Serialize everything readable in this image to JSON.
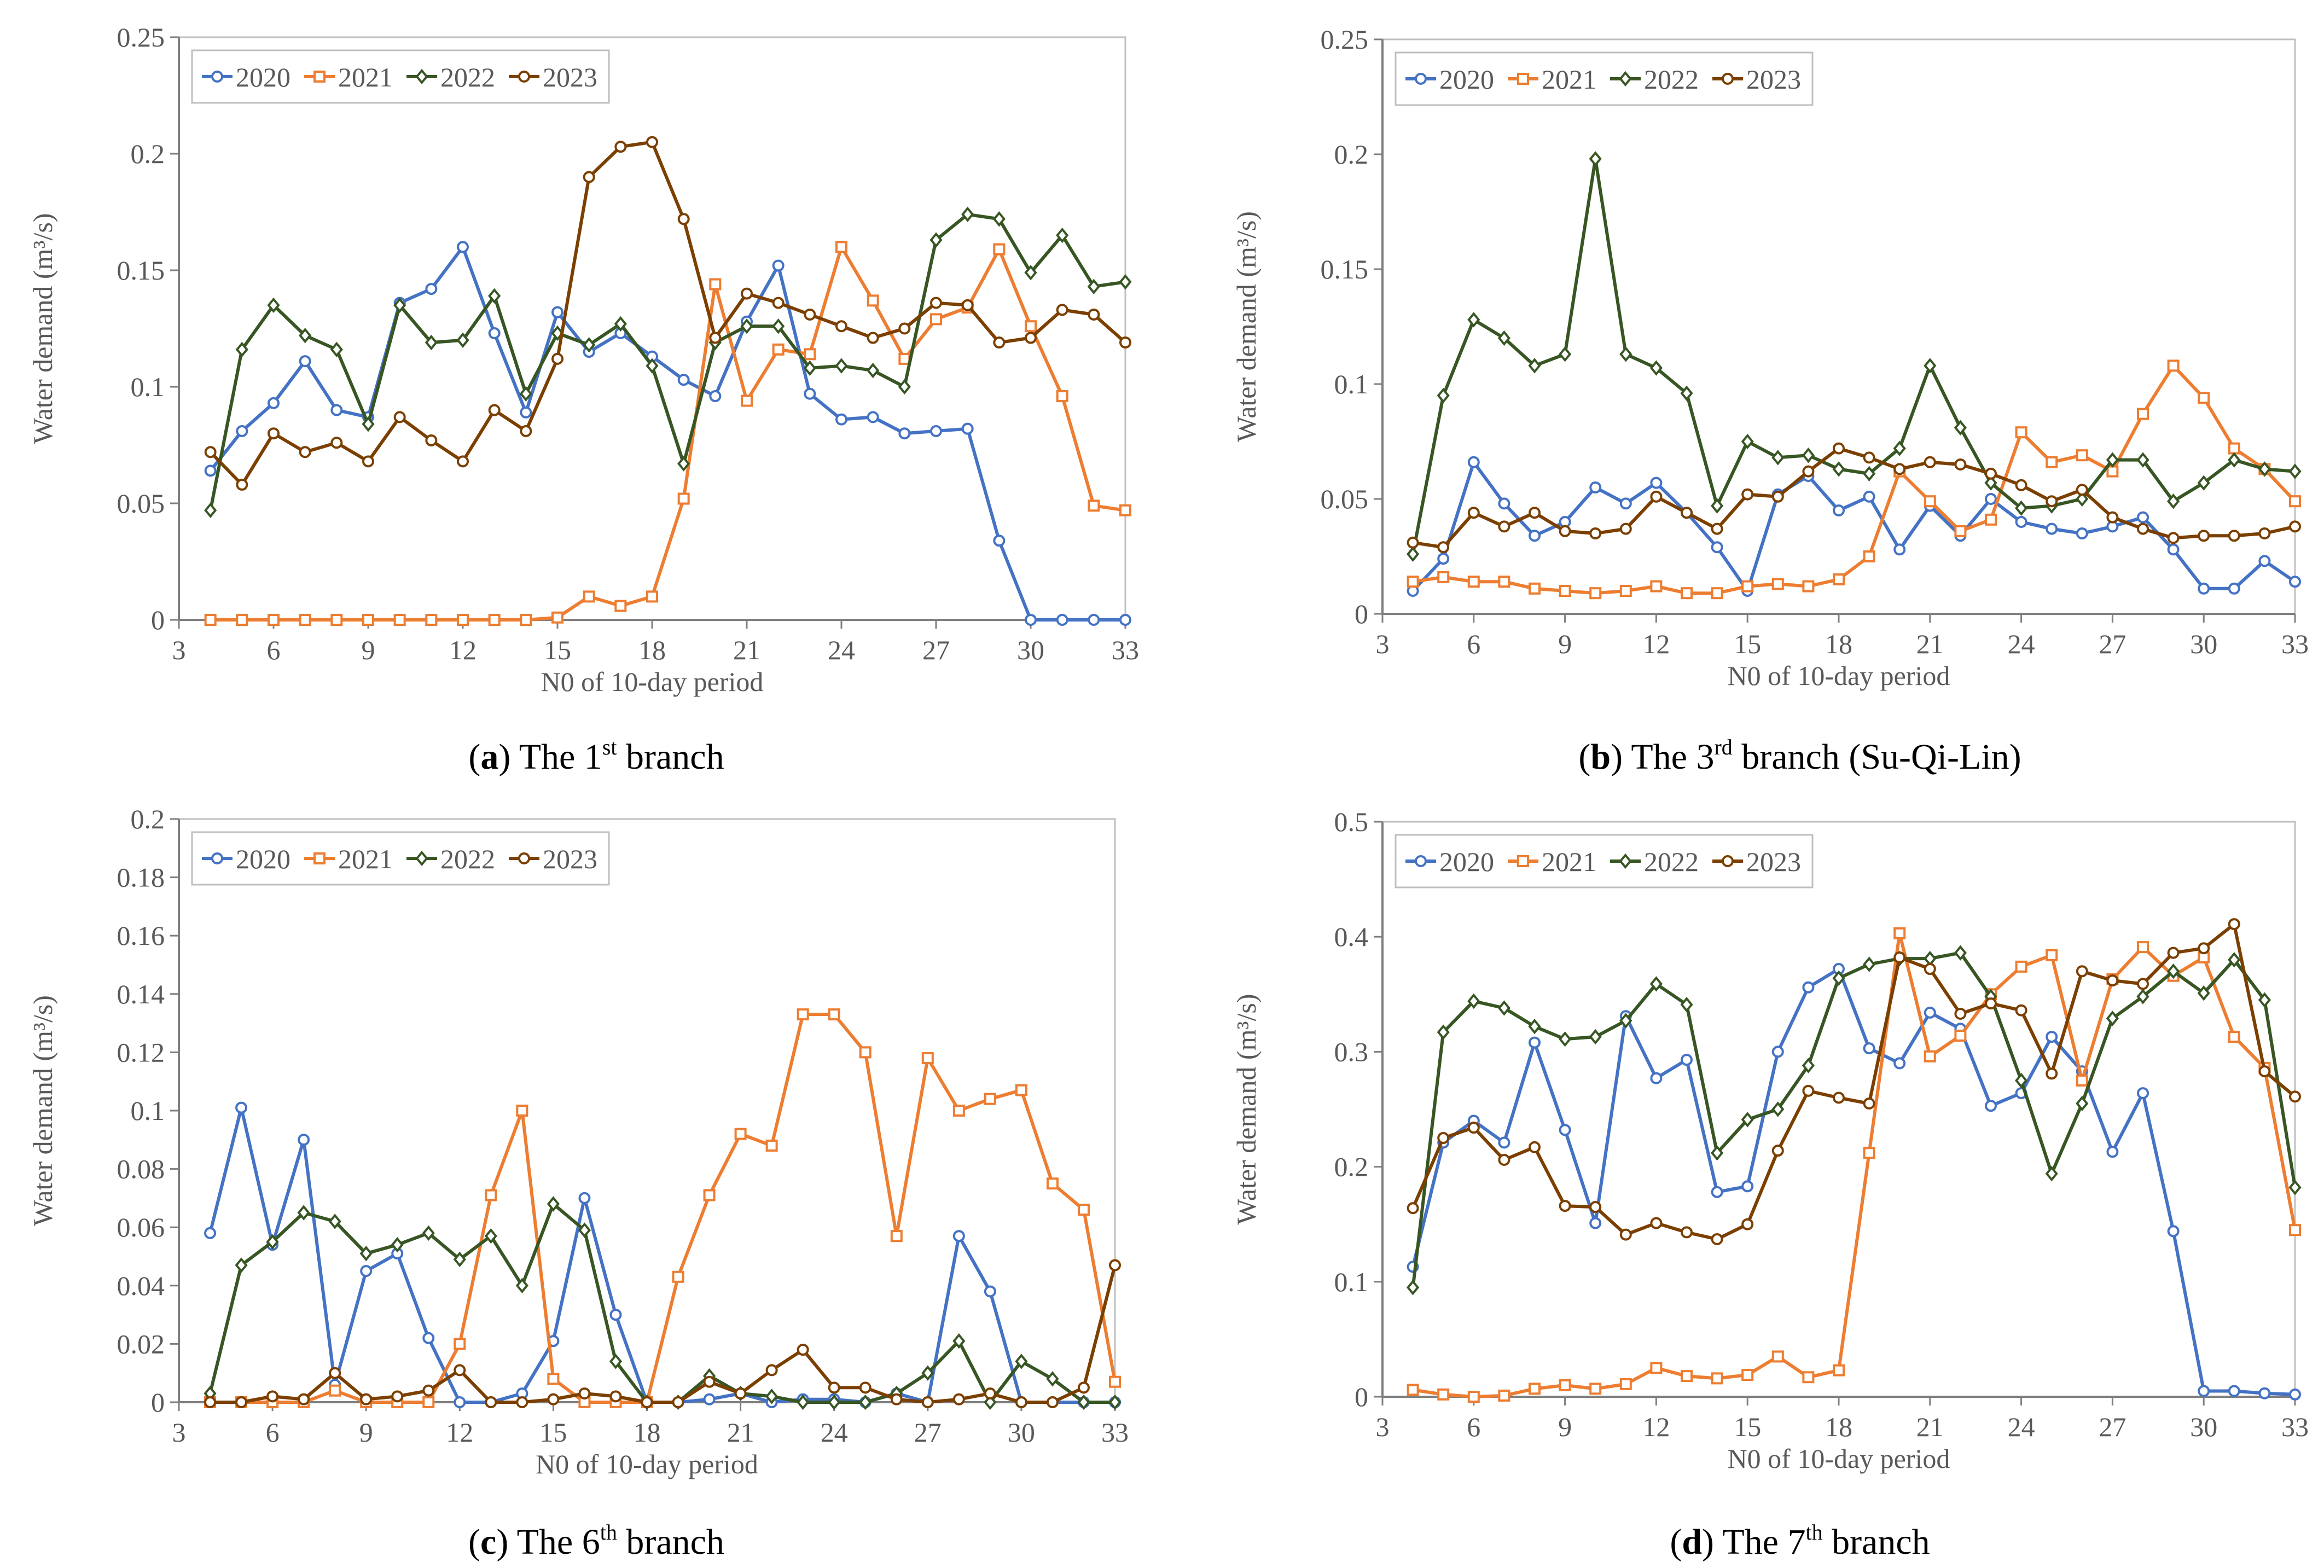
{
  "colors": {
    "s2020": "#4472c4",
    "s2021": "#ed7d31",
    "s2022": "#375623",
    "s2023": "#7b3f00",
    "axis": "#7f7f7f",
    "text": "#595959",
    "caption": "#000000"
  },
  "chart_data": [
    {
      "type": "line",
      "caption": {
        "letter": "a",
        "text": "The 1",
        "sup": "st",
        "suffix": " branch"
      },
      "xlabel": "N0 of 10-day period",
      "ylabel": "Water demand (m³/s)",
      "xlim": [
        3,
        33
      ],
      "ylim": [
        0,
        0.25
      ],
      "xticks": [
        3,
        6,
        9,
        12,
        15,
        18,
        21,
        24,
        27,
        30,
        33
      ],
      "yticks": [
        "0",
        "0.05",
        "0.1",
        "0.15",
        "0.2",
        "0.25"
      ],
      "x": [
        4,
        5,
        6,
        7,
        8,
        9,
        10,
        11,
        12,
        13,
        14,
        15,
        16,
        17,
        18,
        19,
        20,
        21,
        22,
        23,
        24,
        25,
        26,
        27,
        28,
        29,
        30,
        31,
        32,
        33
      ],
      "series": [
        {
          "name": "2020",
          "values": [
            0.064,
            0.081,
            0.093,
            0.111,
            0.09,
            0.087,
            0.136,
            0.142,
            0.16,
            0.123,
            0.089,
            0.132,
            0.115,
            0.123,
            0.113,
            0.103,
            0.096,
            0.128,
            0.152,
            0.097,
            0.086,
            0.087,
            0.08,
            0.081,
            0.082,
            0.034,
            0.0,
            0.0,
            0.0,
            0.0
          ]
        },
        {
          "name": "2021",
          "values": [
            0,
            0,
            0,
            0,
            0,
            0,
            0,
            0,
            0,
            0,
            0,
            0.001,
            0.01,
            0.006,
            0.01,
            0.052,
            0.144,
            0.094,
            0.116,
            0.114,
            0.16,
            0.137,
            0.112,
            0.129,
            0.134,
            0.159,
            0.126,
            0.096,
            0.049,
            0.047
          ]
        },
        {
          "name": "2022",
          "values": [
            0.047,
            0.116,
            0.135,
            0.122,
            0.116,
            0.084,
            0.135,
            0.119,
            0.12,
            0.139,
            0.097,
            0.123,
            0.118,
            0.127,
            0.109,
            0.067,
            0.119,
            0.126,
            0.126,
            0.108,
            0.109,
            0.107,
            0.1,
            0.163,
            0.174,
            0.172,
            0.149,
            0.165,
            0.143,
            0.145
          ]
        },
        {
          "name": "2023",
          "values": [
            0.072,
            0.058,
            0.08,
            0.072,
            0.076,
            0.068,
            0.087,
            0.077,
            0.068,
            0.09,
            0.081,
            0.112,
            0.19,
            0.203,
            0.205,
            0.172,
            0.121,
            0.14,
            0.136,
            0.131,
            0.126,
            0.121,
            0.125,
            0.136,
            0.135,
            0.119,
            0.121,
            0.133,
            0.131,
            0.119
          ]
        }
      ]
    },
    {
      "type": "line",
      "caption": {
        "letter": "b",
        "text": "The 3",
        "sup": "rd",
        "suffix": " branch (Su-Qi-Lin)"
      },
      "xlabel": "N0 of 10-day period",
      "ylabel": "Water demand (m³/s)",
      "xlim": [
        3,
        33
      ],
      "ylim": [
        0,
        0.25
      ],
      "xticks": [
        3,
        6,
        9,
        12,
        15,
        18,
        21,
        24,
        27,
        30,
        33
      ],
      "yticks": [
        "0",
        "0.05",
        "0.1",
        "0.15",
        "0.2",
        "0.25"
      ],
      "x": [
        4,
        5,
        6,
        7,
        8,
        9,
        10,
        11,
        12,
        13,
        14,
        15,
        16,
        17,
        18,
        19,
        20,
        21,
        22,
        23,
        24,
        25,
        26,
        27,
        28,
        29,
        30,
        31,
        32,
        33
      ],
      "series": [
        {
          "name": "2020",
          "values": [
            0.01,
            0.024,
            0.066,
            0.048,
            0.034,
            0.04,
            0.055,
            0.048,
            0.057,
            0.044,
            0.029,
            0.01,
            0.052,
            0.06,
            0.045,
            0.051,
            0.028,
            0.047,
            0.034,
            0.05,
            0.04,
            0.037,
            0.035,
            0.038,
            0.042,
            0.028,
            0.011,
            0.011,
            0.023,
            0.014
          ]
        },
        {
          "name": "2021",
          "values": [
            0.014,
            0.016,
            0.014,
            0.014,
            0.011,
            0.01,
            0.009,
            0.01,
            0.012,
            0.009,
            0.009,
            0.012,
            0.013,
            0.012,
            0.015,
            0.025,
            0.062,
            0.049,
            0.036,
            0.041,
            0.079,
            0.066,
            0.069,
            0.062,
            0.087,
            0.108,
            0.094,
            0.072,
            0.063,
            0.049
          ]
        },
        {
          "name": "2022",
          "values": [
            0.026,
            0.095,
            0.128,
            0.12,
            0.108,
            0.113,
            0.198,
            0.113,
            0.107,
            0.096,
            0.047,
            0.075,
            0.068,
            0.069,
            0.063,
            0.061,
            0.072,
            0.108,
            0.081,
            0.057,
            0.046,
            0.047,
            0.05,
            0.067,
            0.067,
            0.049,
            0.057,
            0.067,
            0.063,
            0.062
          ]
        },
        {
          "name": "2023",
          "values": [
            0.031,
            0.029,
            0.044,
            0.038,
            0.044,
            0.036,
            0.035,
            0.037,
            0.051,
            0.044,
            0.037,
            0.052,
            0.051,
            0.062,
            0.072,
            0.068,
            0.063,
            0.066,
            0.065,
            0.061,
            0.056,
            0.049,
            0.054,
            0.042,
            0.037,
            0.033,
            0.034,
            0.034,
            0.035,
            0.038
          ]
        }
      ]
    },
    {
      "type": "line",
      "caption": {
        "letter": "c",
        "text": "The 6",
        "sup": "th",
        "suffix": " branch"
      },
      "xlabel": "N0 of 10-day period",
      "ylabel": "Water demand (m³/s)",
      "xlim": [
        3,
        33
      ],
      "ylim": [
        0,
        0.2
      ],
      "xticks": [
        3,
        6,
        9,
        12,
        15,
        18,
        21,
        24,
        27,
        30,
        33
      ],
      "yticks": [
        "0",
        "0.02",
        "0.04",
        "0.06",
        "0.08",
        "0.1",
        "0.12",
        "0.14",
        "0.16",
        "0.18",
        "0.2"
      ],
      "x": [
        4,
        5,
        6,
        7,
        8,
        9,
        10,
        11,
        12,
        13,
        14,
        15,
        16,
        17,
        18,
        19,
        20,
        21,
        22,
        23,
        24,
        25,
        26,
        27,
        28,
        29,
        30,
        31,
        32,
        33
      ],
      "series": [
        {
          "name": "2020",
          "values": [
            0.058,
            0.101,
            0.054,
            0.09,
            0.006,
            0.045,
            0.051,
            0.022,
            0.0,
            0.0,
            0.003,
            0.021,
            0.07,
            0.03,
            0.0,
            0.0,
            0.001,
            0.003,
            0.0,
            0.001,
            0.001,
            0.0,
            0.003,
            0.0,
            0.057,
            0.038,
            0.0,
            0.0,
            0.0,
            0.0
          ]
        },
        {
          "name": "2021",
          "values": [
            0,
            0,
            0,
            0,
            0.004,
            0,
            0,
            0,
            0.02,
            0.071,
            0.1,
            0.008,
            0,
            0,
            0,
            0.043,
            0.071,
            0.092,
            0.088,
            0.133,
            0.133,
            0.12,
            0.057,
            0.118,
            0.1,
            0.104,
            0.107,
            0.075,
            0.066,
            0.007
          ]
        },
        {
          "name": "2022",
          "values": [
            0.003,
            0.047,
            0.055,
            0.065,
            0.062,
            0.051,
            0.054,
            0.058,
            0.049,
            0.057,
            0.04,
            0.068,
            0.059,
            0.014,
            0.0,
            0.0,
            0.009,
            0.003,
            0.002,
            0.0,
            0.0,
            0.0,
            0.003,
            0.01,
            0.021,
            0.0,
            0.014,
            0.008,
            0.0,
            0.0
          ]
        },
        {
          "name": "2023",
          "values": [
            0,
            0,
            0.002,
            0.001,
            0.01,
            0.001,
            0.002,
            0.004,
            0.011,
            0,
            0,
            0.001,
            0.003,
            0.002,
            0,
            0,
            0.007,
            0.003,
            0.011,
            0.018,
            0.005,
            0.005,
            0.001,
            0,
            0.001,
            0.003,
            0,
            0,
            0.005,
            0.047
          ]
        }
      ]
    },
    {
      "type": "line",
      "caption": {
        "letter": "d",
        "text": "The 7",
        "sup": "th",
        "suffix": " branch"
      },
      "xlabel": "N0 of 10-day period",
      "ylabel": "Water demand (m³/s)",
      "xlim": [
        3,
        33
      ],
      "ylim": [
        0,
        0.5
      ],
      "xticks": [
        3,
        6,
        9,
        12,
        15,
        18,
        21,
        24,
        27,
        30,
        33
      ],
      "yticks": [
        "0",
        "0.1",
        "0.2",
        "0.3",
        "0.4",
        "0.5"
      ],
      "x": [
        4,
        5,
        6,
        7,
        8,
        9,
        10,
        11,
        12,
        13,
        14,
        15,
        16,
        17,
        18,
        19,
        20,
        21,
        22,
        23,
        24,
        25,
        26,
        27,
        28,
        29,
        30,
        31,
        32,
        33
      ],
      "series": [
        {
          "name": "2020",
          "values": [
            0.113,
            0.221,
            0.24,
            0.221,
            0.308,
            0.232,
            0.151,
            0.331,
            0.277,
            0.293,
            0.178,
            0.183,
            0.3,
            0.356,
            0.372,
            0.303,
            0.29,
            0.334,
            0.32,
            0.253,
            0.264,
            0.313,
            0.283,
            0.213,
            0.264,
            0.144,
            0.005,
            0.005,
            0.003,
            0.002
          ]
        },
        {
          "name": "2021",
          "values": [
            0.006,
            0.002,
            0.0,
            0.001,
            0.007,
            0.01,
            0.007,
            0.011,
            0.025,
            0.018,
            0.016,
            0.019,
            0.035,
            0.017,
            0.023,
            0.212,
            0.403,
            0.296,
            0.314,
            0.35,
            0.374,
            0.384,
            0.275,
            0.363,
            0.391,
            0.366,
            0.382,
            0.313,
            0.286,
            0.145
          ]
        },
        {
          "name": "2022",
          "values": [
            0.095,
            0.317,
            0.344,
            0.338,
            0.322,
            0.311,
            0.313,
            0.327,
            0.359,
            0.341,
            0.212,
            0.241,
            0.25,
            0.288,
            0.364,
            0.376,
            0.381,
            0.381,
            0.386,
            0.348,
            0.275,
            0.194,
            0.255,
            0.329,
            0.348,
            0.37,
            0.351,
            0.38,
            0.345,
            0.182
          ]
        },
        {
          "name": "2023",
          "values": [
            0.164,
            0.225,
            0.234,
            0.206,
            0.217,
            0.166,
            0.165,
            0.141,
            0.151,
            0.143,
            0.137,
            0.15,
            0.214,
            0.266,
            0.26,
            0.255,
            0.382,
            0.372,
            0.333,
            0.342,
            0.336,
            0.281,
            0.37,
            0.362,
            0.359,
            0.386,
            0.39,
            0.411,
            0.283,
            0.261
          ]
        }
      ]
    }
  ]
}
